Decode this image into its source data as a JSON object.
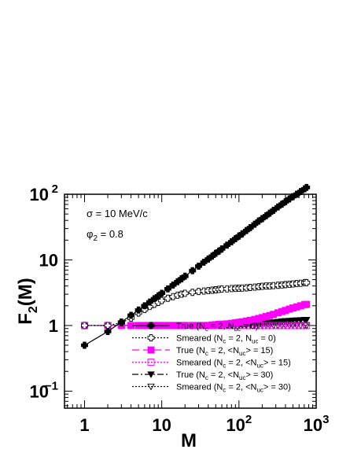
{
  "chart_data": {
    "type": "line",
    "xlabel": "M",
    "ylabel": "F_2(M)",
    "xscale": "log",
    "yscale": "log",
    "xlim": [
      0.55,
      1000
    ],
    "ylim": [
      0.055,
      100
    ],
    "x_ticks": [
      {
        "value": 1,
        "label": "1"
      },
      {
        "value": 10,
        "label": "10"
      },
      {
        "value": 100,
        "label": "10",
        "exp": "2"
      },
      {
        "value": 1000,
        "label": "10",
        "exp": "3"
      }
    ],
    "y_ticks": [
      {
        "value": 0.1,
        "label": "10",
        "exp": "−1"
      },
      {
        "value": 1,
        "label": "1"
      },
      {
        "value": 10,
        "label": "10"
      },
      {
        "value": 100,
        "label": "10",
        "exp": "2"
      }
    ],
    "annotations": [
      {
        "text": "σ = 10 MeV/c"
      },
      {
        "text": "φ",
        "sub": "2",
        "rest": " = 0.8"
      }
    ],
    "legend_position": "bottom-right",
    "x": [
      1,
      2,
      3,
      4,
      5,
      6,
      7,
      8,
      9,
      10,
      12,
      14,
      16,
      18,
      20,
      25,
      30,
      35,
      40,
      45,
      50,
      55,
      60,
      70,
      80,
      90,
      100,
      110,
      125,
      140,
      160,
      180,
      200,
      225,
      250,
      280,
      320,
      360,
      400,
      450,
      500,
      560,
      630,
      710,
      750
    ],
    "series": [
      {
        "name": "True (N_c = 2, N_uc = 0)",
        "legend": [
          {
            "t": "True (N"
          },
          {
            "t": "c",
            "s": "sub"
          },
          {
            "t": " = 2, N"
          },
          {
            "t": "uc",
            "s": "sub"
          },
          {
            "t": " = 0)"
          }
        ],
        "color": "#000000",
        "marker": "plus",
        "line": "solid",
        "filled": true,
        "values": [
          0.5,
          0.81,
          1.13,
          1.43,
          1.72,
          2.0,
          2.28,
          2.56,
          2.83,
          3.1,
          3.62,
          4.14,
          4.65,
          5.15,
          5.64,
          6.85,
          8.03,
          9.2,
          10.3,
          11.4,
          12.6,
          13.6,
          14.7,
          16.8,
          18.9,
          21.0,
          23.0,
          25.0,
          28.0,
          31.0,
          35.0,
          39.0,
          42.5,
          47.0,
          51.5,
          57.0,
          64.0,
          70.5,
          77.0,
          85.0,
          92.0,
          100.0,
          110.0,
          121.0,
          127.0
        ]
      },
      {
        "name": "Smeared (N_c = 2, N_uc = 0)",
        "legend": [
          {
            "t": "Smeared (N"
          },
          {
            "t": "c",
            "s": "sub"
          },
          {
            "t": " = 2, N"
          },
          {
            "t": "uc",
            "s": "sub"
          },
          {
            "t": " = 0)"
          }
        ],
        "color": "#000000",
        "marker": "plus",
        "line": "dotted",
        "filled": false,
        "values": [
          1.0,
          1.0,
          1.1,
          1.3,
          1.55,
          1.75,
          1.95,
          2.1,
          2.25,
          2.4,
          2.6,
          2.75,
          2.9,
          3.0,
          3.1,
          3.2,
          3.3,
          3.35,
          3.4,
          3.45,
          3.5,
          3.55,
          3.6,
          3.62,
          3.65,
          3.68,
          3.7,
          3.72,
          3.75,
          3.8,
          3.85,
          3.9,
          3.95,
          4.0,
          4.0,
          4.05,
          4.1,
          4.15,
          4.2,
          4.25,
          4.3,
          4.35,
          4.4,
          4.5,
          4.5
        ]
      },
      {
        "name": "True (N_c = 2, <N_uc> = 15)",
        "legend": [
          {
            "t": "True (N"
          },
          {
            "t": "c",
            "s": "sub"
          },
          {
            "t": " = 2, <N"
          },
          {
            "t": "uc",
            "s": "sub"
          },
          {
            "t": "> = 15)"
          }
        ],
        "color": "#ff00ff",
        "marker": "square",
        "line": "dashed",
        "filled": true,
        "values": [
          1.0,
          1.0,
          1.0,
          1.0,
          1.0,
          1.0,
          1.0,
          1.0,
          1.0,
          1.0,
          1.0,
          1.0,
          1.0,
          1.0,
          1.0,
          1.0,
          1.0,
          1.0,
          1.0,
          1.02,
          1.03,
          1.04,
          1.05,
          1.06,
          1.08,
          1.1,
          1.12,
          1.14,
          1.17,
          1.2,
          1.24,
          1.28,
          1.32,
          1.37,
          1.42,
          1.48,
          1.56,
          1.63,
          1.7,
          1.78,
          1.85,
          1.92,
          2.0,
          2.08,
          2.1
        ]
      },
      {
        "name": "Smeared (N_c = 2, <N_uc> = 15)",
        "legend": [
          {
            "t": "Smeared (N"
          },
          {
            "t": "c",
            "s": "sub"
          },
          {
            "t": " = 2, <N"
          },
          {
            "t": "uc",
            "s": "sub"
          },
          {
            "t": "> = 15)"
          }
        ],
        "color": "#ff00ff",
        "marker": "square",
        "line": "dotted",
        "filled": false,
        "values": [
          1.0,
          1.0,
          1.0,
          1.0,
          1.0,
          1.0,
          1.0,
          1.0,
          1.0,
          1.0,
          1.0,
          1.0,
          1.0,
          1.0,
          1.0,
          1.0,
          1.0,
          1.0,
          1.0,
          1.0,
          1.0,
          1.0,
          1.0,
          1.0,
          1.0,
          1.0,
          1.0,
          1.0,
          1.0,
          1.0,
          1.0,
          1.0,
          1.0,
          1.0,
          1.0,
          1.0,
          1.0,
          1.0,
          1.0,
          1.0,
          1.0,
          1.0,
          1.0,
          1.0,
          1.0
        ]
      },
      {
        "name": "True (N_c = 2, <N_uc> = 30)",
        "legend": [
          {
            "t": "True (N"
          },
          {
            "t": "c",
            "s": "sub"
          },
          {
            "t": " = 2, <N"
          },
          {
            "t": "uc",
            "s": "sub"
          },
          {
            "t": "> = 30)"
          }
        ],
        "color": "#000000",
        "marker": "triangle-down",
        "line": "dashdot",
        "filled": true,
        "values": [
          1.0,
          1.0,
          1.0,
          1.0,
          1.0,
          1.0,
          1.0,
          1.0,
          1.0,
          1.0,
          1.0,
          1.0,
          1.0,
          1.0,
          1.0,
          1.0,
          1.0,
          1.0,
          1.0,
          1.0,
          1.0,
          1.0,
          1.0,
          1.0,
          1.01,
          1.02,
          1.03,
          1.04,
          1.05,
          1.06,
          1.07,
          1.08,
          1.09,
          1.1,
          1.11,
          1.12,
          1.14,
          1.16,
          1.17,
          1.18,
          1.19,
          1.2,
          1.21,
          1.22,
          1.22
        ]
      },
      {
        "name": "Smeared (N_c = 2, <N_uc> = 30)",
        "legend": [
          {
            "t": "Smeared (N"
          },
          {
            "t": "c",
            "s": "sub"
          },
          {
            "t": " = 2, <N"
          },
          {
            "t": "uc",
            "s": "sub"
          },
          {
            "t": "> = 30)"
          }
        ],
        "color": "#000000",
        "marker": "triangle-down",
        "line": "dotted",
        "filled": false,
        "values": [
          1.0,
          1.0,
          1.0,
          1.0,
          1.0,
          1.0,
          1.0,
          1.0,
          1.0,
          1.0,
          1.0,
          1.0,
          1.0,
          1.0,
          1.0,
          1.0,
          1.0,
          1.0,
          1.0,
          1.0,
          1.0,
          1.0,
          1.0,
          1.0,
          1.0,
          1.0,
          1.0,
          1.0,
          1.0,
          1.0,
          1.0,
          1.0,
          1.0,
          1.0,
          1.0,
          1.0,
          1.0,
          1.0,
          1.0,
          1.0,
          1.0,
          1.0,
          1.0,
          1.0,
          1.0
        ]
      }
    ]
  }
}
